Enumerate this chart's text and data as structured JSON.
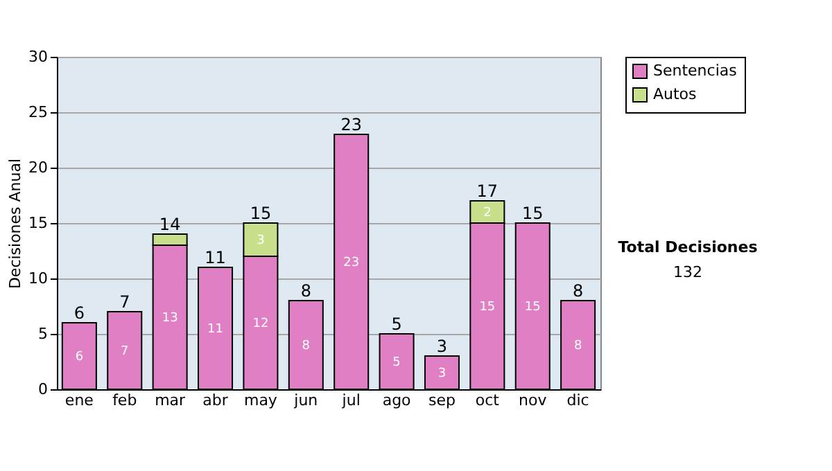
{
  "chart_data": {
    "type": "bar",
    "stacked": true,
    "ylabel": "Decisiones Anual",
    "categories": [
      "ene",
      "feb",
      "mar",
      "abr",
      "may",
      "jun",
      "jul",
      "ago",
      "sep",
      "oct",
      "nov",
      "dic"
    ],
    "series": [
      {
        "name": "Sentencias",
        "color": "#e07fc4",
        "values": [
          6,
          7,
          13,
          11,
          12,
          8,
          23,
          5,
          3,
          15,
          15,
          8
        ],
        "value_labels": [
          "6",
          "7",
          "13",
          "11",
          "12",
          "8",
          "23",
          "5",
          "3",
          "15",
          "15",
          "8"
        ]
      },
      {
        "name": "Autos",
        "color": "#c8e08c",
        "values": [
          null,
          null,
          1,
          null,
          3,
          null,
          null,
          null,
          null,
          2,
          null,
          null
        ],
        "value_labels": [
          null,
          null,
          null,
          null,
          "3",
          null,
          null,
          null,
          null,
          "2",
          null,
          null
        ]
      }
    ],
    "totals": [
      "6",
      "7",
      "14",
      "11",
      "15",
      "8",
      "23",
      "5",
      "3",
      "17",
      "15",
      "8"
    ],
    "ylim": [
      0,
      30
    ],
    "yticks": [
      0,
      5,
      10,
      15,
      20,
      25,
      30
    ],
    "grid": "y",
    "legend": "right",
    "annotations": [
      "Total Decisiones",
      "132"
    ]
  }
}
